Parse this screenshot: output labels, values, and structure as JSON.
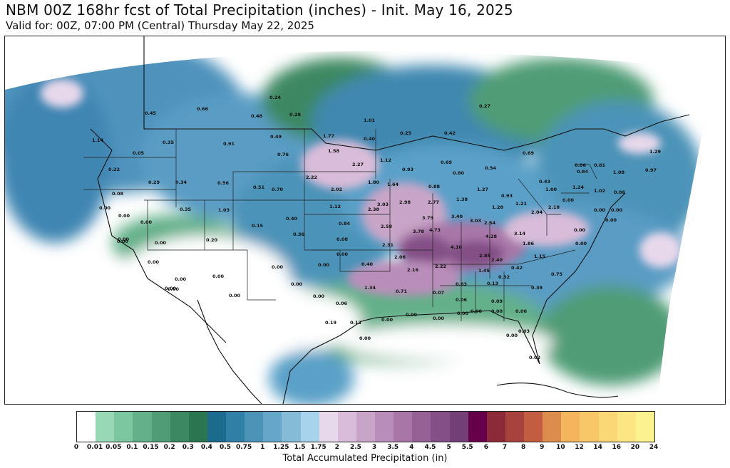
{
  "header": {
    "title": "NBM 00Z 168hr fcst of Total Precipitation (inches) - Init. May 16, 2025",
    "subtitle": "Valid for: 00Z, 07:00 PM (Central) Thursday May 22, 2025"
  },
  "map": {
    "region": "Contiguous United States",
    "station_values": [
      {
        "id": "v01",
        "text": "0.66"
      },
      {
        "id": "v02",
        "text": "0.24"
      },
      {
        "id": "v03",
        "text": "0.45"
      },
      {
        "id": "v04",
        "text": "0.48"
      },
      {
        "id": "v05",
        "text": "0.28"
      },
      {
        "id": "v06",
        "text": "0.27"
      },
      {
        "id": "v07",
        "text": "1.01"
      },
      {
        "id": "v08",
        "text": "0.49"
      },
      {
        "id": "v09",
        "text": "0.91"
      },
      {
        "id": "v10",
        "text": "0.35"
      },
      {
        "id": "v11",
        "text": "0.05"
      },
      {
        "id": "v12",
        "text": "1.14"
      },
      {
        "id": "v13",
        "text": "0.76"
      },
      {
        "id": "v14",
        "text": "1.77"
      },
      {
        "id": "v15",
        "text": "0.40"
      },
      {
        "id": "v16",
        "text": "0.25"
      },
      {
        "id": "v17",
        "text": "0.42"
      },
      {
        "id": "v18",
        "text": "1.58"
      },
      {
        "id": "v19",
        "text": "1.12"
      },
      {
        "id": "v20",
        "text": "0.22"
      },
      {
        "id": "v21",
        "text": "0.29"
      },
      {
        "id": "v22",
        "text": "0.34"
      },
      {
        "id": "v23",
        "text": "0.56"
      },
      {
        "id": "v24",
        "text": "0.51"
      },
      {
        "id": "v25",
        "text": "0.70"
      },
      {
        "id": "v26",
        "text": "2.22"
      },
      {
        "id": "v27",
        "text": "2.27"
      },
      {
        "id": "v28",
        "text": "0.93"
      },
      {
        "id": "v29",
        "text": "0.69"
      },
      {
        "id": "v30",
        "text": "0.80"
      },
      {
        "id": "v31",
        "text": "0.54"
      },
      {
        "id": "v32",
        "text": "0.69"
      },
      {
        "id": "v33",
        "text": "0.86"
      },
      {
        "id": "v34",
        "text": "1.08"
      },
      {
        "id": "v35",
        "text": "1.29"
      },
      {
        "id": "v36",
        "text": "0.97"
      },
      {
        "id": "v37",
        "text": "0.84"
      },
      {
        "id": "v38",
        "text": "0.81"
      },
      {
        "id": "v39",
        "text": "0.08"
      },
      {
        "id": "v40",
        "text": "1.80"
      },
      {
        "id": "v41",
        "text": "1.64"
      },
      {
        "id": "v42",
        "text": "0.88"
      },
      {
        "id": "v43",
        "text": "1.27"
      },
      {
        "id": "v44",
        "text": "0.93"
      },
      {
        "id": "v45",
        "text": "0.43"
      },
      {
        "id": "v46",
        "text": "1.00"
      },
      {
        "id": "v47",
        "text": "1.24"
      },
      {
        "id": "v48",
        "text": "1.02"
      },
      {
        "id": "v49",
        "text": "0.86"
      },
      {
        "id": "v50",
        "text": "2.02"
      },
      {
        "id": "v51",
        "text": "0.00"
      },
      {
        "id": "v52",
        "text": "0.35"
      },
      {
        "id": "v53",
        "text": "1.03"
      },
      {
        "id": "v54",
        "text": "1.12"
      },
      {
        "id": "v55",
        "text": "2.38"
      },
      {
        "id": "v56",
        "text": "3.03"
      },
      {
        "id": "v57",
        "text": "2.98"
      },
      {
        "id": "v58",
        "text": "2.77"
      },
      {
        "id": "v59",
        "text": "1.38"
      },
      {
        "id": "v60",
        "text": "1.21"
      },
      {
        "id": "v61",
        "text": "1.28"
      },
      {
        "id": "v62",
        "text": "2.18"
      },
      {
        "id": "v63",
        "text": "2.04"
      },
      {
        "id": "v64",
        "text": "0.00"
      },
      {
        "id": "v65",
        "text": "0.00"
      },
      {
        "id": "v66",
        "text": "0.15"
      },
      {
        "id": "v67",
        "text": "0.40"
      },
      {
        "id": "v68",
        "text": "0.36"
      },
      {
        "id": "v69",
        "text": "0.84"
      },
      {
        "id": "v70",
        "text": "2.58"
      },
      {
        "id": "v71",
        "text": "3.79"
      },
      {
        "id": "v72",
        "text": "3.40"
      },
      {
        "id": "v73",
        "text": "3.03"
      },
      {
        "id": "v74",
        "text": "2.54"
      },
      {
        "id": "v75",
        "text": "3.78"
      },
      {
        "id": "v76",
        "text": "4.73"
      },
      {
        "id": "v77",
        "text": "3.14"
      },
      {
        "id": "v78",
        "text": "0.00"
      },
      {
        "id": "v79",
        "text": "0.20"
      },
      {
        "id": "v80",
        "text": "0.00"
      },
      {
        "id": "v81",
        "text": "0.08"
      },
      {
        "id": "v82",
        "text": "2.31"
      },
      {
        "id": "v83",
        "text": "4.28"
      },
      {
        "id": "v84",
        "text": "1.86"
      },
      {
        "id": "v85",
        "text": "4.10"
      },
      {
        "id": "v86",
        "text": "0.00"
      },
      {
        "id": "v87",
        "text": "0.00"
      },
      {
        "id": "v88",
        "text": "0.00"
      },
      {
        "id": "v89",
        "text": "0.40"
      },
      {
        "id": "v90",
        "text": "2.06"
      },
      {
        "id": "v91",
        "text": "2.85"
      },
      {
        "id": "v92",
        "text": "2.40"
      },
      {
        "id": "v93",
        "text": "1.15"
      },
      {
        "id": "v94",
        "text": "0.00"
      },
      {
        "id": "v95",
        "text": "0.00"
      },
      {
        "id": "v96",
        "text": "0.00"
      },
      {
        "id": "v97",
        "text": "2.16"
      },
      {
        "id": "v98",
        "text": "2.22"
      },
      {
        "id": "v99",
        "text": "1.45"
      },
      {
        "id": "v100",
        "text": "0.42"
      },
      {
        "id": "v101",
        "text": "0.32"
      },
      {
        "id": "v102",
        "text": "0.75"
      },
      {
        "id": "v103",
        "text": "0.00"
      },
      {
        "id": "v104",
        "text": "0.00"
      },
      {
        "id": "v105",
        "text": "1.34"
      },
      {
        "id": "v106",
        "text": "0.71"
      },
      {
        "id": "v107",
        "text": "0.07"
      },
      {
        "id": "v108",
        "text": "0.63"
      },
      {
        "id": "v109",
        "text": "0.13"
      },
      {
        "id": "v110",
        "text": "0.38"
      },
      {
        "id": "v111",
        "text": "0.00"
      },
      {
        "id": "v112",
        "text": "0.06"
      },
      {
        "id": "v113",
        "text": "0.06"
      },
      {
        "id": "v114",
        "text": "0.09"
      },
      {
        "id": "v115",
        "text": "0.00"
      },
      {
        "id": "v116",
        "text": "0.00"
      },
      {
        "id": "v117",
        "text": "0.00"
      },
      {
        "id": "v118",
        "text": "0.00"
      },
      {
        "id": "v119",
        "text": "0.19"
      },
      {
        "id": "v120",
        "text": "0.13"
      },
      {
        "id": "v121",
        "text": "0.00"
      },
      {
        "id": "v122",
        "text": "0.00"
      },
      {
        "id": "v123",
        "text": "0.00"
      },
      {
        "id": "v124",
        "text": "0.00"
      },
      {
        "id": "v125",
        "text": "0.00"
      },
      {
        "id": "v126",
        "text": "0.03"
      },
      {
        "id": "v127",
        "text": "0.00"
      },
      {
        "id": "v128",
        "text": "0.02"
      },
      {
        "id": "v129",
        "text": "0.00"
      },
      {
        "id": "v130",
        "text": "0.00"
      },
      {
        "id": "v131",
        "text": "0.00"
      },
      {
        "id": "v132",
        "text": "0.00"
      },
      {
        "id": "v133",
        "text": "0.00"
      },
      {
        "id": "v134",
        "text": "0.00"
      },
      {
        "id": "v135",
        "text": "0.00"
      },
      {
        "id": "v136",
        "text": "0.00"
      }
    ]
  },
  "colorbar": {
    "label": "Total Accumulated Precipitation (in)",
    "ticks": [
      "0",
      "0.01",
      "0.05",
      "0.1",
      "0.15",
      "0.2",
      "0.3",
      "0.4",
      "0.5",
      "0.75",
      "1",
      "1.25",
      "1.5",
      "1.75",
      "2",
      "2.5",
      "3",
      "3.5",
      "4",
      "4.5",
      "5",
      "5.5",
      "6",
      "7",
      "8",
      "9",
      "10",
      "12",
      "14",
      "16",
      "20",
      "24"
    ],
    "colors": [
      "#ffffff",
      "#99d8b6",
      "#7cc6a0",
      "#63b08a",
      "#4f9c76",
      "#3c8862",
      "#2b7550",
      "#1a6b8e",
      "#2f7fa6",
      "#4c93b8",
      "#66a6c8",
      "#86bbd8",
      "#a7d3ec",
      "#e8d8ec",
      "#d9bcd9",
      "#c8a5c8",
      "#b98db9",
      "#a877a8",
      "#966296",
      "#834f86",
      "#733f77",
      "#66004a",
      "#8c2a3a",
      "#a8423f",
      "#c25d42",
      "#dc8c4c",
      "#f4b55c",
      "#f8c868",
      "#fbd775",
      "#fce583",
      "#fdf290"
    ]
  }
}
